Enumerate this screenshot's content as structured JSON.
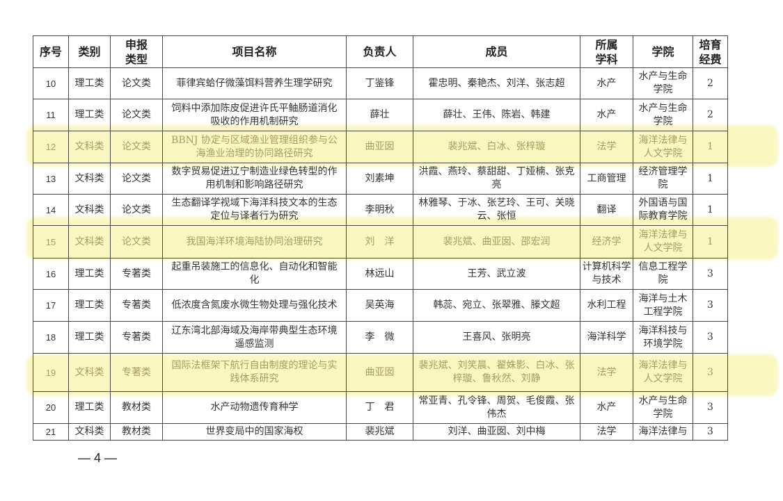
{
  "highlight_color": "#f6f08c",
  "headers": [
    "序号",
    "类别",
    "申报类型",
    "项目名称",
    "负责人",
    "成员",
    "所属学科",
    "学院",
    "培育经费"
  ],
  "rows": [
    {
      "no": "10",
      "cat": "理工类",
      "type": "论文类",
      "name": "菲律宾蛤仔微藻饵料营养生理学研究",
      "lead": "丁鉴锋",
      "members": "霍忠明、秦艳杰、刘洋、张志超",
      "field": "水产",
      "college": "水产与生命学院",
      "fund": "2",
      "highlighted": false
    },
    {
      "no": "11",
      "cat": "理工类",
      "type": "论文类",
      "name": "饲料中添加陈皮促进许氏平鲉肠道消化吸收的作用机制研究",
      "lead": "薛壮",
      "members": "薛壮、王伟、陈岩、韩建",
      "field": "水产",
      "college": "水产与生命学院",
      "fund": "2",
      "highlighted": false
    },
    {
      "no": "12",
      "cat": "文科类",
      "type": "论文类",
      "name": "BBNJ 协定与区域渔业管理组织参与公海渔业治理的协同路径研究",
      "lead": "曲亚囡",
      "members": "裴兆斌、白冰、张梓璇",
      "field": "法学",
      "college": "海洋法律与人文学院",
      "fund": "1",
      "highlighted": true
    },
    {
      "no": "13",
      "cat": "文科类",
      "type": "论文类",
      "name": "数字贸易促进辽宁制造业绿色转型的作用机制和影响路径研究",
      "lead": "刘素坤",
      "members": "洪霞、燕玲、蔡甜甜、丁娅楠、张克亮",
      "field": "工商管理",
      "college": "经济管理学院",
      "fund": "1",
      "highlighted": false
    },
    {
      "no": "14",
      "cat": "文科类",
      "type": "论文类",
      "name": "生态翻译学视域下海洋科技文本的生态定位与译者行为研究",
      "lead": "李明秋",
      "members": "林雅琴、于冰、张艺玲、王可、关晓云、张恒",
      "field": "翻译",
      "college": "外国语与国际教育学院",
      "fund": "1",
      "highlighted": false
    },
    {
      "no": "15",
      "cat": "文科类",
      "type": "论文类",
      "name": "我国海洋环境海陆协同治理研究",
      "lead": "刘　洋",
      "members": "裴兆斌、曲亚囡、邵宏润",
      "field": "经济学",
      "college": "海洋法律与人文学院",
      "fund": "1",
      "highlighted": true
    },
    {
      "no": "16",
      "cat": "理工类",
      "type": "专著类",
      "name": "起重吊装施工的信息化、自动化和智能化",
      "lead": "林远山",
      "members": "王芳、武立波",
      "field": "计算机科学与技术",
      "college": "信息工程学院",
      "fund": "3",
      "highlighted": false
    },
    {
      "no": "17",
      "cat": "理工类",
      "type": "专著类",
      "name": "低浓度含氮废水微生物处理与强化技术",
      "lead": "吴英海",
      "members": "韩蕊、宛立、张翠雅、滕文超",
      "field": "水利工程",
      "college": "海洋与土木工程学院",
      "fund": "3",
      "highlighted": false
    },
    {
      "no": "18",
      "cat": "理工类",
      "type": "专著类",
      "name": "辽东湾北部海域及海岸带典型生态环境遥感监测",
      "lead": "李　微",
      "members": "王喜风、张明亮",
      "field": "海洋科学",
      "college": "海洋科技与环境学院",
      "fund": "3",
      "highlighted": false
    },
    {
      "no": "19",
      "cat": "文科类",
      "type": "专著类",
      "name": "国际法框架下航行自由制度的理论与实践体系研究",
      "lead": "曲亚囡",
      "members": "裴兆斌、刘笑晨、翟姝影、白冰、张梓璇、鲁秋然、刘静",
      "field": "法学",
      "college": "海洋法律与人文学院",
      "fund": "3",
      "highlighted": true
    },
    {
      "no": "20",
      "cat": "理工类",
      "type": "教材类",
      "name": "水产动物遗传育种学",
      "lead": "丁　君",
      "members": "常亚青、孔令锋、周贺、毛俊霞、张伟杰",
      "field": "水产",
      "college": "水产与生命学院",
      "fund": "3",
      "highlighted": false
    },
    {
      "no": "21",
      "cat": "文科类",
      "type": "教材类",
      "name": "世界变局中的国家海权",
      "lead": "裴兆斌",
      "members": "刘洋、曲亚囡、刘中梅",
      "field": "法学",
      "college": "海洋法律与",
      "fund": "3",
      "highlighted": false
    }
  ],
  "page_number": "— 4 —"
}
